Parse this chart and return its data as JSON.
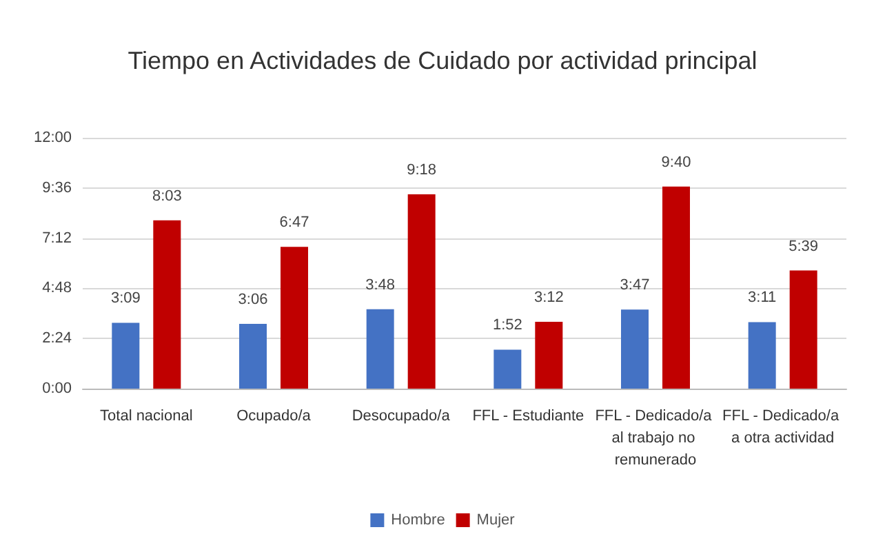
{
  "chart_data": {
    "type": "bar",
    "title": "Tiempo en Actividades de Cuidado por actividad principal",
    "categories": [
      "Total nacional",
      "Ocupado/a",
      "Desocupado/a",
      "FFL - Estudiante",
      "FFL - Dedicado/a al trabajo no remunerado",
      "FFL - Dedicado/a a otra actividad"
    ],
    "series": [
      {
        "name": "Hombre",
        "color": "#4472c4",
        "values": [
          3.15,
          3.1,
          3.8,
          1.8667,
          3.7833,
          3.1833
        ],
        "value_labels": [
          "3:09",
          "3:06",
          "3:48",
          "1:52",
          "3:47",
          "3:11"
        ]
      },
      {
        "name": "Mujer",
        "color": "#c00000",
        "values": [
          8.05,
          6.7833,
          9.3,
          3.2,
          9.6667,
          5.65
        ],
        "value_labels": [
          "8:03",
          "6:47",
          "9:18",
          "3:12",
          "9:40",
          "5:39"
        ]
      }
    ],
    "ylim": [
      0,
      12
    ],
    "yticks": [
      {
        "value": 0,
        "label": "0:00"
      },
      {
        "value": 2.4,
        "label": "2:24"
      },
      {
        "value": 4.8,
        "label": "4:48"
      },
      {
        "value": 7.2,
        "label": "7:12"
      },
      {
        "value": 9.6,
        "label": "9:36"
      },
      {
        "value": 12,
        "label": "12:00"
      }
    ],
    "grid": "y",
    "legend": "bottom"
  }
}
